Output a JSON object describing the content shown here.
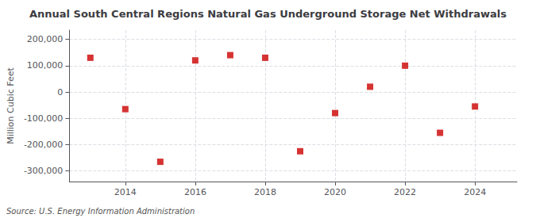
{
  "chart_data": {
    "type": "scatter",
    "title": "Annual South Central Regions Natural Gas Underground Storage Net Withdrawals",
    "ylabel": "Million Cubic Feet",
    "annotation": "Source: U.S. Energy Information Administration",
    "x": [
      2013,
      2014,
      2015,
      2016,
      2017,
      2018,
      2019,
      2020,
      2021,
      2022,
      2023,
      2024
    ],
    "values": [
      130000,
      -65000,
      -265000,
      120000,
      140000,
      130000,
      -225000,
      -80000,
      20000,
      100000,
      -155000,
      -55000
    ],
    "color": "#cc0000",
    "marker": "square",
    "xlim": [
      2012.4,
      2025.2
    ],
    "xticks": [
      2014,
      2016,
      2018,
      2020,
      2022,
      2024
    ],
    "ylim": [
      -340000,
      235000
    ],
    "yticks": [
      {
        "value": -300000,
        "label": "-300,000"
      },
      {
        "value": -200000,
        "label": "-200,000"
      },
      {
        "value": -100000,
        "label": "-100,000"
      },
      0,
      {
        "value": 100000,
        "label": "100,000"
      },
      {
        "value": 200000,
        "label": "200,000"
      }
    ],
    "grid": true
  }
}
